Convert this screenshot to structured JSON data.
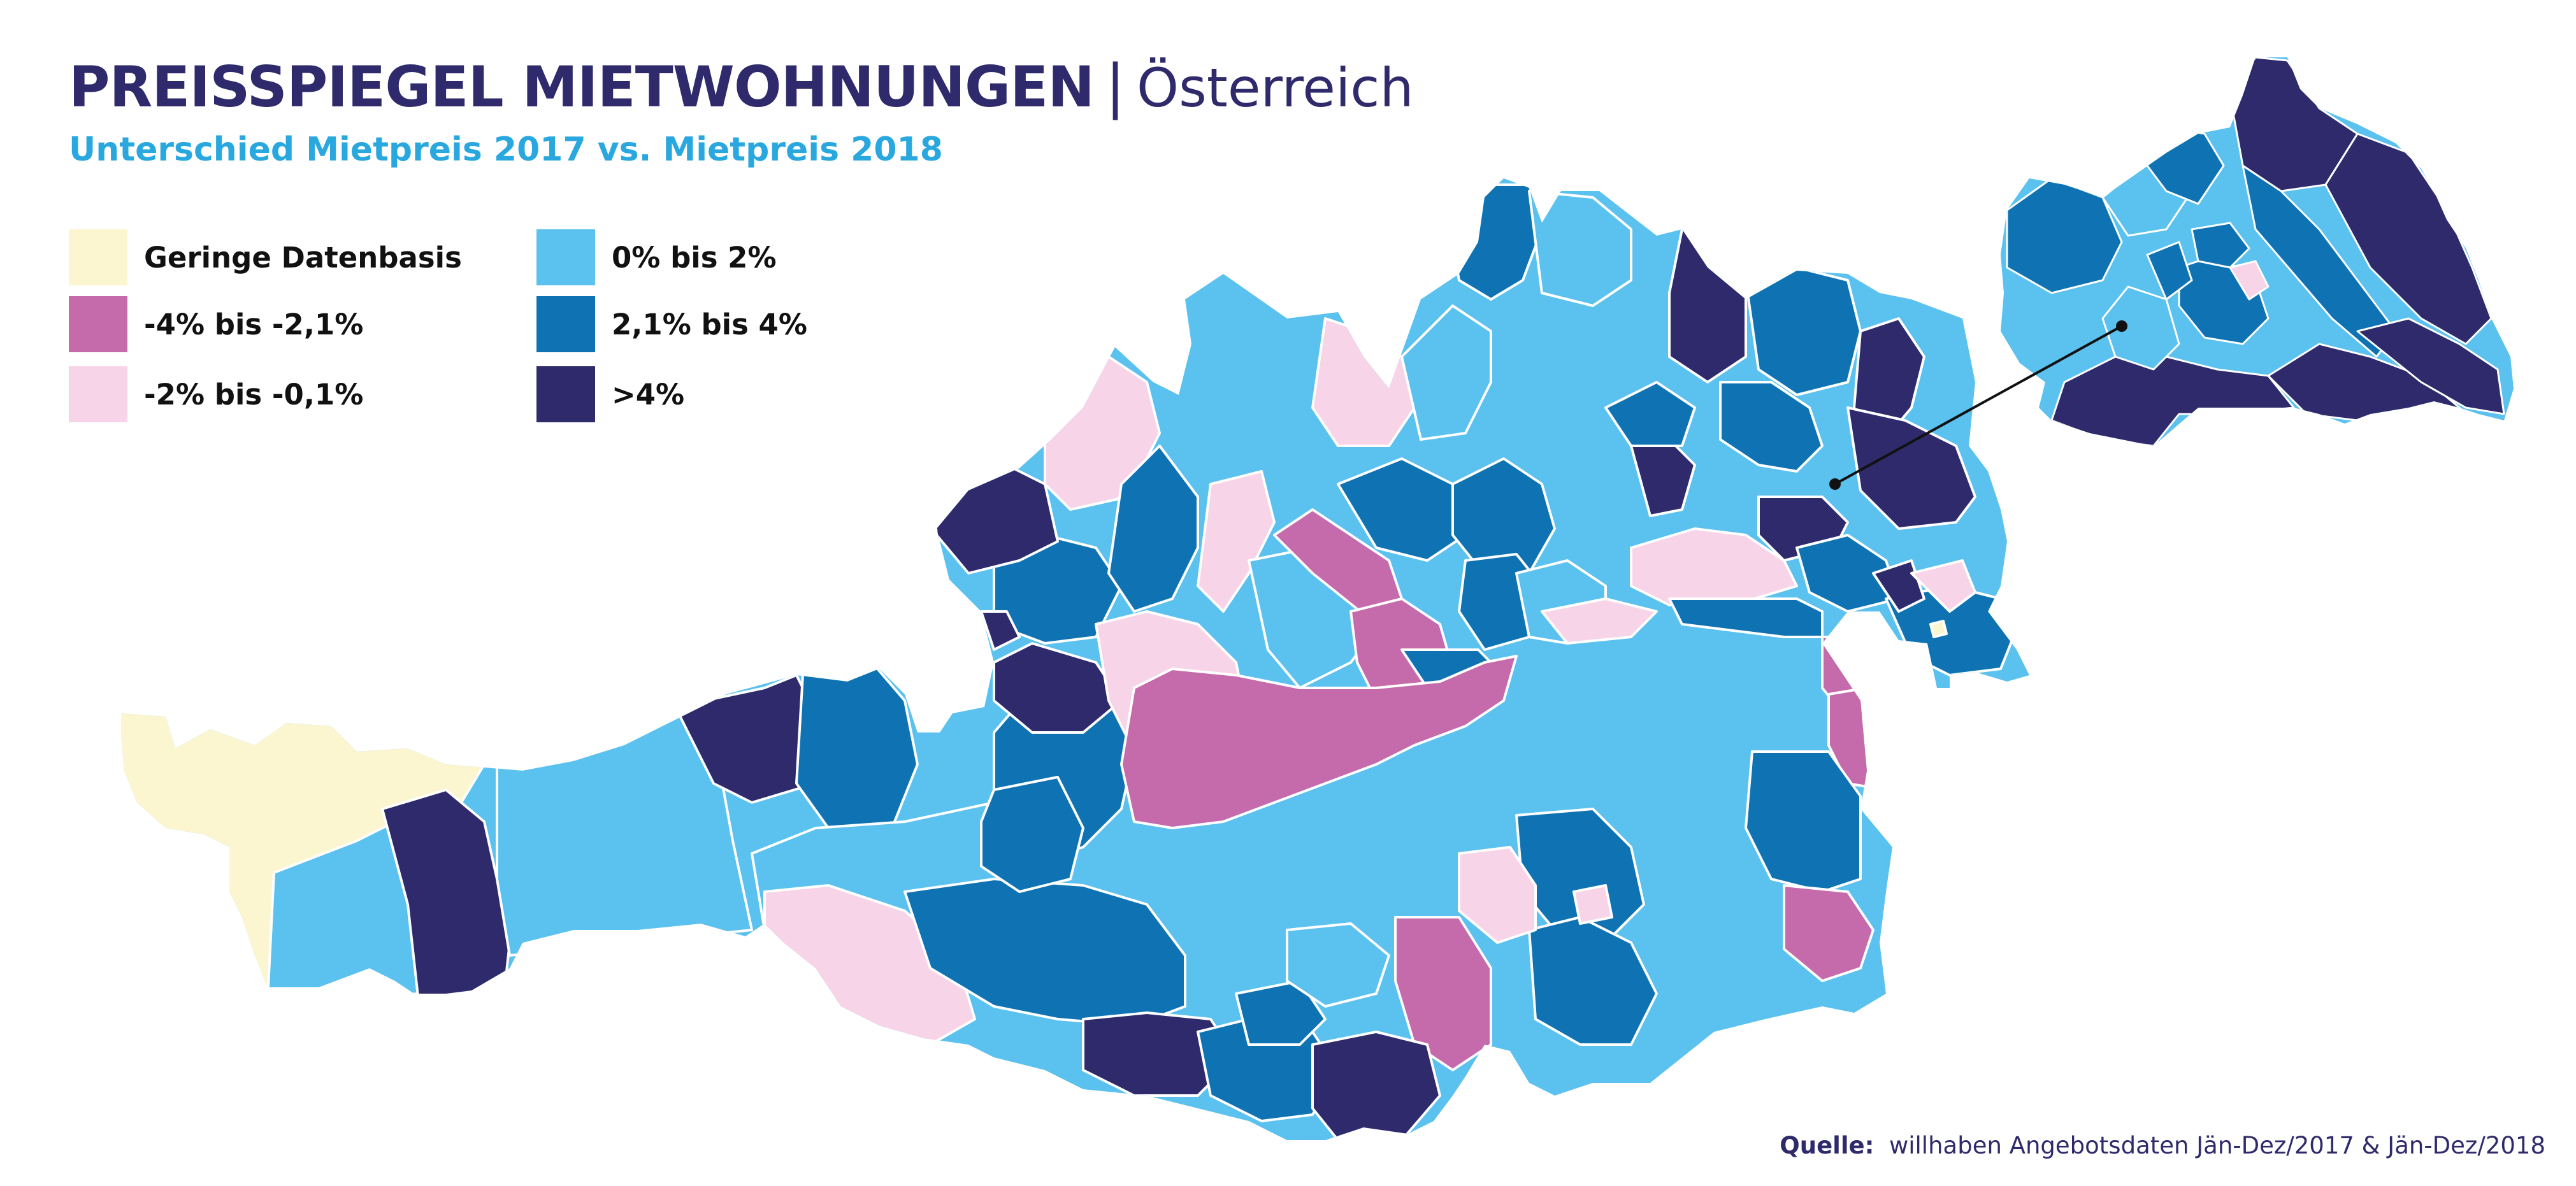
{
  "title": {
    "main": "PREISSPIEGEL MIETWOHNUNGEN",
    "separator": "|",
    "country": "Österreich"
  },
  "subtitle": "Unterschied Mietpreis 2017 vs. Mietpreis 2018",
  "legend": [
    {
      "label": "Geringe Datenbasis",
      "color": "#fbf6cf"
    },
    {
      "label": "-4% bis -2,1%",
      "color": "#c56aab"
    },
    {
      "label": "-2% bis -0,1%",
      "color": "#f7d4e8"
    },
    {
      "label": "0% bis 2%",
      "color": "#5bc1ee"
    },
    {
      "label": "2,1% bis 4%",
      "color": "#0f73b3"
    },
    {
      "label": ">4%",
      "color": "#2e2a6b"
    }
  ],
  "source": {
    "label": "Quelle:",
    "text": "willhaben Angebotsdaten Jän-Dez/2017 & Jän-Dez/2018"
  },
  "colors": {
    "title": "#2e2a6b",
    "subtitle": "#29a8df",
    "border": "#ffffff"
  },
  "map": {
    "regions": "Bezirke (Österreich) mit Detailausschnitt Wien",
    "inset": "Wien"
  }
}
